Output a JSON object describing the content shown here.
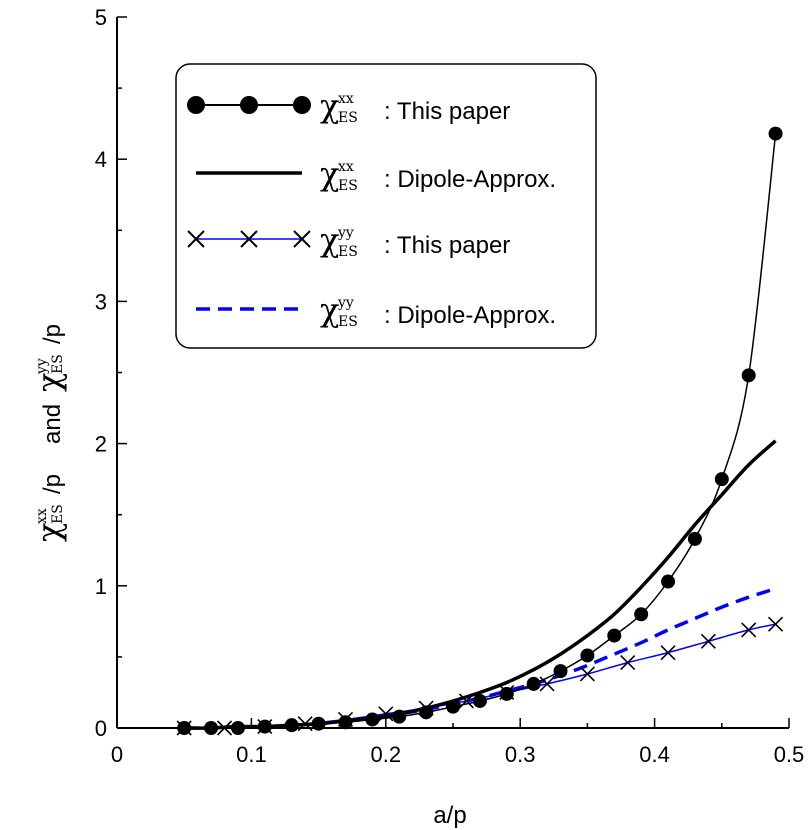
{
  "chart_data": {
    "type": "line",
    "xlabel": "a/p",
    "ylabel": {
      "symbol": "χ",
      "sup1": "xx",
      "sub1": "ES",
      "tail1": "/p",
      "middle": "and",
      "sup2": "yy",
      "sub2": "ES",
      "tail2": "/p"
    },
    "xlim": [
      0,
      0.5
    ],
    "ylim": [
      0,
      5
    ],
    "xticks": [
      0,
      0.1,
      0.2,
      0.3,
      0.4,
      0.5
    ],
    "xtick_labels": [
      "0",
      "0.1",
      "0.2",
      "0.3",
      "0.4",
      "0.5"
    ],
    "yticks": [
      0,
      1,
      2,
      3,
      4,
      5
    ],
    "ytick_labels": [
      "0",
      "1",
      "2",
      "3",
      "4",
      "5"
    ],
    "grid": false,
    "legend_position": "top-left",
    "series": [
      {
        "name": "χ xx ES : This paper",
        "legend": {
          "symbol": "χ",
          "sup": "xx",
          "sub": "ES",
          "text": ": This paper"
        },
        "style": "solid-thin",
        "marker": "circle",
        "color": "#000000",
        "x": [
          0.05,
          0.07,
          0.09,
          0.11,
          0.13,
          0.15,
          0.17,
          0.19,
          0.21,
          0.23,
          0.25,
          0.27,
          0.29,
          0.31,
          0.33,
          0.35,
          0.37,
          0.39,
          0.41,
          0.43,
          0.45,
          0.47,
          0.49
        ],
        "y": [
          0.0,
          0.0,
          0.0,
          0.01,
          0.02,
          0.03,
          0.04,
          0.06,
          0.08,
          0.11,
          0.15,
          0.19,
          0.24,
          0.31,
          0.4,
          0.51,
          0.65,
          0.8,
          1.03,
          1.33,
          1.75,
          2.48,
          4.18
        ]
      },
      {
        "name": "χ xx ES : Dipole-Approx.",
        "legend": {
          "symbol": "χ",
          "sup": "xx",
          "sub": "ES",
          "text": ": Dipole-Approx."
        },
        "style": "solid-thick",
        "marker": "none",
        "color": "#000000",
        "x": [
          0.05,
          0.07,
          0.09,
          0.11,
          0.13,
          0.15,
          0.17,
          0.19,
          0.21,
          0.23,
          0.25,
          0.27,
          0.29,
          0.31,
          0.33,
          0.35,
          0.37,
          0.39,
          0.41,
          0.43,
          0.45,
          0.47,
          0.49
        ],
        "y": [
          0.0,
          0.0,
          0.01,
          0.01,
          0.02,
          0.03,
          0.05,
          0.07,
          0.1,
          0.14,
          0.19,
          0.25,
          0.32,
          0.41,
          0.52,
          0.65,
          0.8,
          0.99,
          1.2,
          1.43,
          1.64,
          1.85,
          2.02
        ]
      },
      {
        "name": "χ yy ES : This paper",
        "legend": {
          "symbol": "χ",
          "sup": "yy",
          "sub": "ES",
          "text": ": This paper"
        },
        "style": "solid-thin",
        "marker": "cross",
        "color": "#0000ff",
        "marker_color": "#000000",
        "x": [
          0.05,
          0.08,
          0.11,
          0.14,
          0.17,
          0.2,
          0.23,
          0.26,
          0.29,
          0.32,
          0.35,
          0.38,
          0.41,
          0.44,
          0.47,
          0.49
        ],
        "y": [
          0.0,
          0.0,
          0.01,
          0.03,
          0.06,
          0.1,
          0.14,
          0.19,
          0.25,
          0.31,
          0.38,
          0.46,
          0.53,
          0.61,
          0.69,
          0.73
        ]
      },
      {
        "name": "χ yy ES : Dipole-Approx.",
        "legend": {
          "symbol": "χ",
          "sup": "yy",
          "sub": "ES",
          "text": ": Dipole-Approx."
        },
        "style": "dashed",
        "marker": "none",
        "color": "#0000ff",
        "x": [
          0.05,
          0.07,
          0.09,
          0.11,
          0.13,
          0.15,
          0.17,
          0.19,
          0.21,
          0.23,
          0.25,
          0.27,
          0.29,
          0.31,
          0.33,
          0.35,
          0.37,
          0.39,
          0.41,
          0.43,
          0.45,
          0.47,
          0.49
        ],
        "y": [
          0.0,
          0.0,
          0.01,
          0.01,
          0.02,
          0.03,
          0.05,
          0.07,
          0.1,
          0.13,
          0.17,
          0.21,
          0.26,
          0.31,
          0.37,
          0.44,
          0.52,
          0.6,
          0.69,
          0.77,
          0.85,
          0.92,
          0.98
        ]
      }
    ]
  }
}
